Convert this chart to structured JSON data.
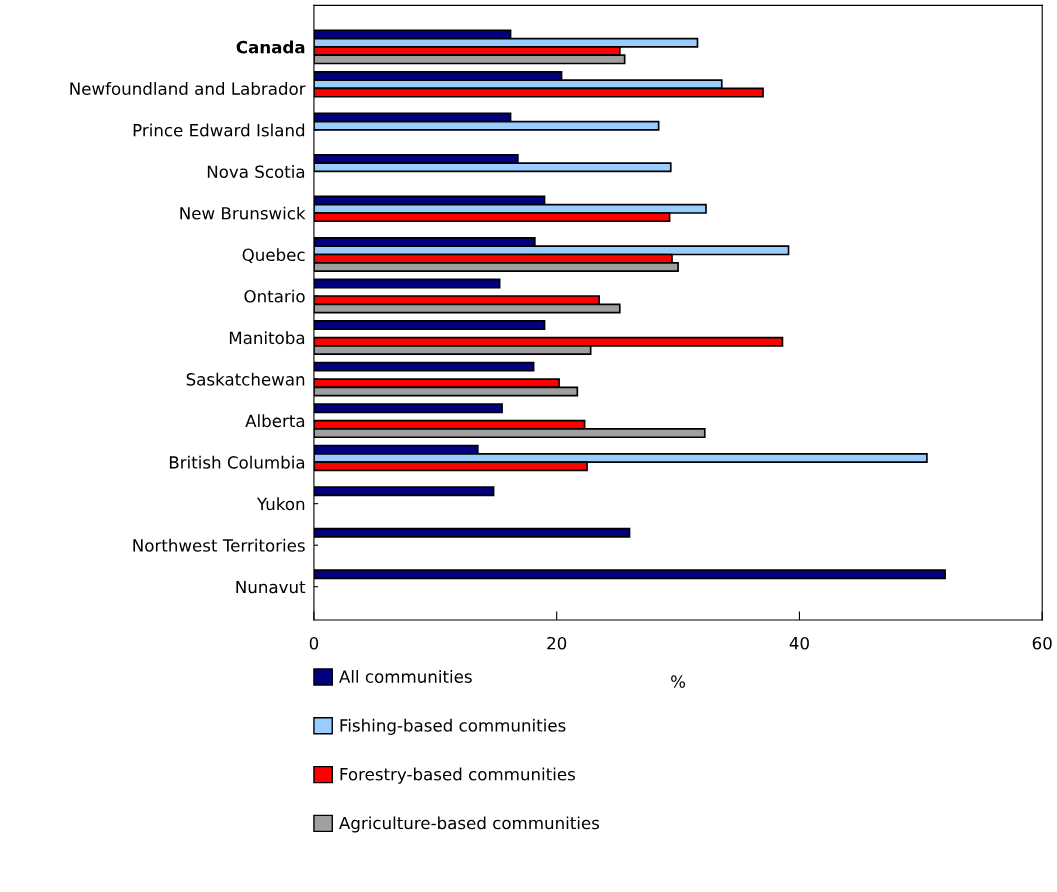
{
  "chart_data": {
    "type": "bar",
    "orientation": "horizontal",
    "xlabel": "%",
    "categories": [
      "Canada",
      "Newfoundland and Labrador",
      "Prince Edward Island",
      "Nova Scotia",
      "New Brunswick",
      "Quebec",
      "Ontario",
      "Manitoba",
      "Saskatchewan",
      "Alberta",
      "British Columbia",
      "Yukon",
      "Northwest Territories",
      "Nunavut"
    ],
    "series": [
      {
        "name": "All communities",
        "color": "#000080",
        "values": [
          16.2,
          20.4,
          16.2,
          16.8,
          19.0,
          18.2,
          15.3,
          19.0,
          18.1,
          15.5,
          13.5,
          14.8,
          26.0,
          52.0
        ]
      },
      {
        "name": "Fishing-based communities",
        "color": "#99ccff",
        "values": [
          31.6,
          33.6,
          28.4,
          29.4,
          32.3,
          39.1,
          null,
          null,
          null,
          null,
          50.5,
          null,
          null,
          null
        ]
      },
      {
        "name": "Forestry-based communities",
        "color": "#ff0000",
        "values": [
          25.2,
          37.0,
          null,
          null,
          29.3,
          29.5,
          23.5,
          38.6,
          20.2,
          22.3,
          22.5,
          null,
          null,
          null
        ]
      },
      {
        "name": "Agriculture-based communities",
        "color": "#a0a0a0",
        "values": [
          25.6,
          null,
          null,
          null,
          null,
          30.0,
          25.2,
          22.8,
          21.7,
          32.2,
          null,
          null,
          null,
          null
        ]
      }
    ],
    "xlim": [
      0,
      60
    ],
    "xticks": [
      0,
      20,
      40,
      60
    ],
    "grid": false,
    "legend": "bottom"
  }
}
